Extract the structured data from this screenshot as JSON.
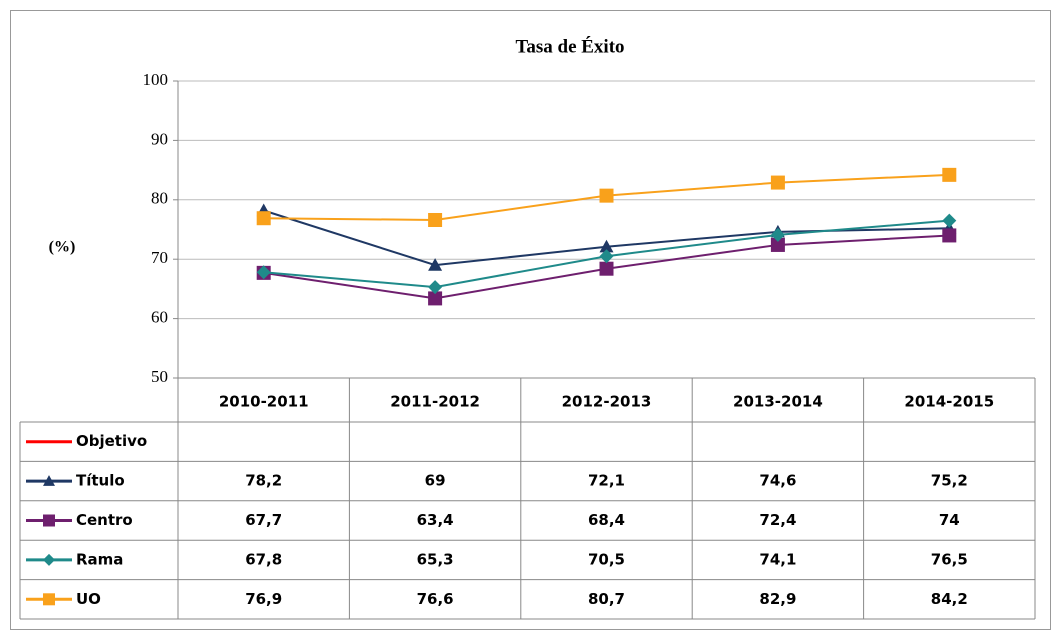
{
  "chart_data": {
    "type": "line",
    "title": "Tasa de Éxito",
    "y_label": "(%)",
    "categories": [
      "2010-2011",
      "2011-2012",
      "2012-2013",
      "2013-2014",
      "2014-2015"
    ],
    "ylim": [
      50,
      100
    ],
    "yticks": [
      50,
      60,
      70,
      80,
      90,
      100
    ],
    "grid": true,
    "series": [
      {
        "name": "Objetivo",
        "color": "#ff0000",
        "marker": "none",
        "values": [
          null,
          null,
          null,
          null,
          null
        ]
      },
      {
        "name": "Título",
        "color": "#1f3864",
        "marker": "triangle",
        "values": [
          78.2,
          69,
          72.1,
          74.6,
          75.2
        ],
        "value_labels": [
          "78,2",
          "69",
          "72,1",
          "74,6",
          "75,2"
        ]
      },
      {
        "name": "Centro",
        "color": "#6e1f6e",
        "marker": "square",
        "values": [
          67.7,
          63.4,
          68.4,
          72.4,
          74
        ],
        "value_labels": [
          "67,7",
          "63,4",
          "68,4",
          "72,4",
          "74"
        ]
      },
      {
        "name": "Rama",
        "color": "#1f8a8a",
        "marker": "diamond",
        "values": [
          67.8,
          65.3,
          70.5,
          74.1,
          76.5
        ],
        "value_labels": [
          "67,8",
          "65,3",
          "70,5",
          "74,1",
          "76,5"
        ]
      },
      {
        "name": "UO",
        "color": "#f9a11b",
        "marker": "square",
        "values": [
          76.9,
          76.6,
          80.7,
          82.9,
          84.2
        ],
        "value_labels": [
          "76,9",
          "76,6",
          "80,7",
          "82,9",
          "84,2"
        ]
      }
    ]
  }
}
